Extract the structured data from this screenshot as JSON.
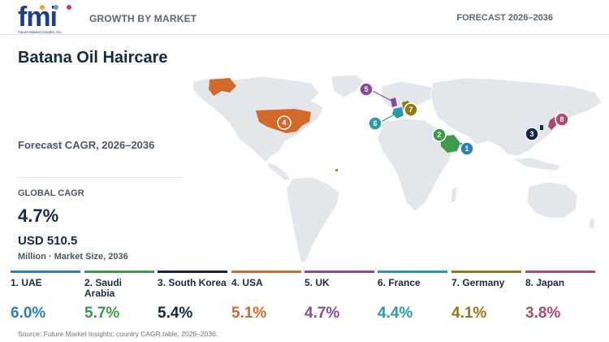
{
  "brand": {
    "logo_text": "fmi",
    "logo_subtext": "Future Market Insights, Inc."
  },
  "header": {
    "left_label": "GROWTH BY MARKET",
    "right_label": "FORECAST 2026–2036"
  },
  "title": "Batana Oil Haircare",
  "subtitle": "Forecast CAGR, 2026–2036",
  "global": {
    "label": "GLOBAL CAGR",
    "cagr": "4.7%",
    "market_size": "USD 510.5",
    "market_note": "Million · Market Size, 2036"
  },
  "countries": [
    {
      "rank": "1",
      "name": "1. UAE",
      "cagr": "6.0%",
      "color": "#2e7fbf"
    },
    {
      "rank": "2",
      "name": "2. Saudi Arabia",
      "cagr": "5.7%",
      "color": "#3d9a48"
    },
    {
      "rank": "3",
      "name": "3. South Korea",
      "cagr": "5.4%",
      "color": "#14274a"
    },
    {
      "rank": "4",
      "name": "4. USA",
      "cagr": "5.1%",
      "color": "#d4692c"
    },
    {
      "rank": "5",
      "name": "5. UK",
      "cagr": "4.7%",
      "color": "#8a4a9c"
    },
    {
      "rank": "6",
      "name": "6. France",
      "cagr": "4.4%",
      "color": "#2a9aa8"
    },
    {
      "rank": "7",
      "name": "7. Germany",
      "cagr": "4.1%",
      "color": "#947818"
    },
    {
      "rank": "8",
      "name": "8. Japan",
      "cagr": "3.8%",
      "color": "#b04a6a"
    }
  ],
  "source": "Source: Future Market Insights; country CAGR table, 2026–2036."
}
